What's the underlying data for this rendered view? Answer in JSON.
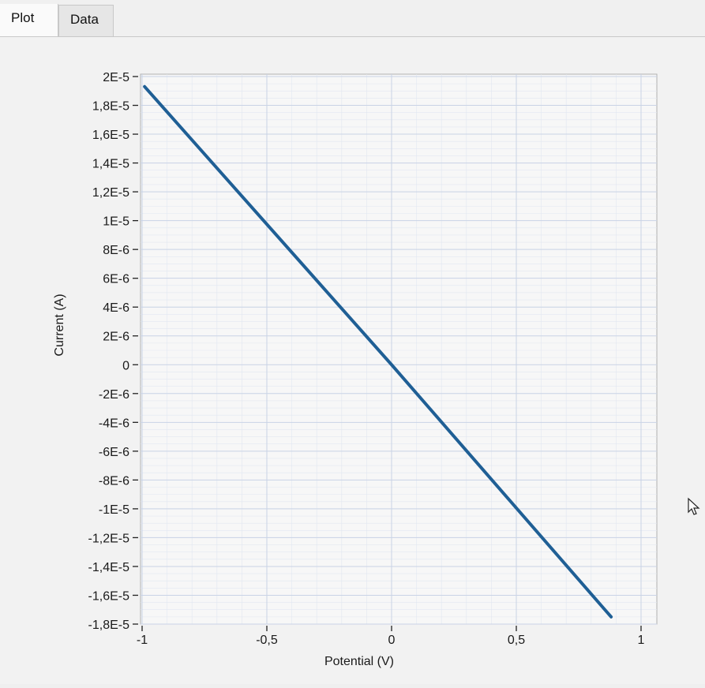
{
  "tabs": [
    {
      "label": "Plot",
      "active": true
    },
    {
      "label": "Data",
      "active": false
    }
  ],
  "icons": {
    "cursor": "mouse-pointer-icon"
  },
  "colors": {
    "line": "#1f5f95",
    "grid": "#c9d3e6",
    "plot_bg": "#f7f7f7"
  },
  "chart_data": {
    "type": "line",
    "xlabel": "Potential (V)",
    "ylabel": "Current (A)",
    "xlim": [
      -1,
      1
    ],
    "ylim": [
      -1.8e-05,
      2e-05
    ],
    "x_ticks": [
      -1,
      -0.5,
      0,
      0.5,
      1
    ],
    "x_tick_labels": [
      "-1",
      "-0,5",
      "0",
      "0,5",
      "1"
    ],
    "y_ticks": [
      2e-05,
      1.8e-05,
      1.6e-05,
      1.4e-05,
      1.2e-05,
      1e-05,
      8e-06,
      6e-06,
      4e-06,
      2e-06,
      0,
      -2e-06,
      -4e-06,
      -6e-06,
      -8e-06,
      -1e-05,
      -1.2e-05,
      -1.4e-05,
      -1.6e-05,
      -1.8e-05
    ],
    "y_tick_labels": [
      "2E-5",
      "1,8E-5",
      "1,6E-5",
      "1,4E-5",
      "1,2E-5",
      "1E-5",
      "8E-6",
      "6E-6",
      "4E-6",
      "2E-6",
      "0",
      "-2E-6",
      "-4E-6",
      "-6E-6",
      "-8E-6",
      "-1E-5",
      "-1,2E-5",
      "-1,4E-5",
      "-1,6E-5",
      "-1,8E-5"
    ],
    "grid": true,
    "series": [
      {
        "x": [
          -0.99,
          0,
          0.88
        ],
        "y": [
          1.93e-05,
          0,
          -1.75e-05
        ]
      }
    ]
  }
}
